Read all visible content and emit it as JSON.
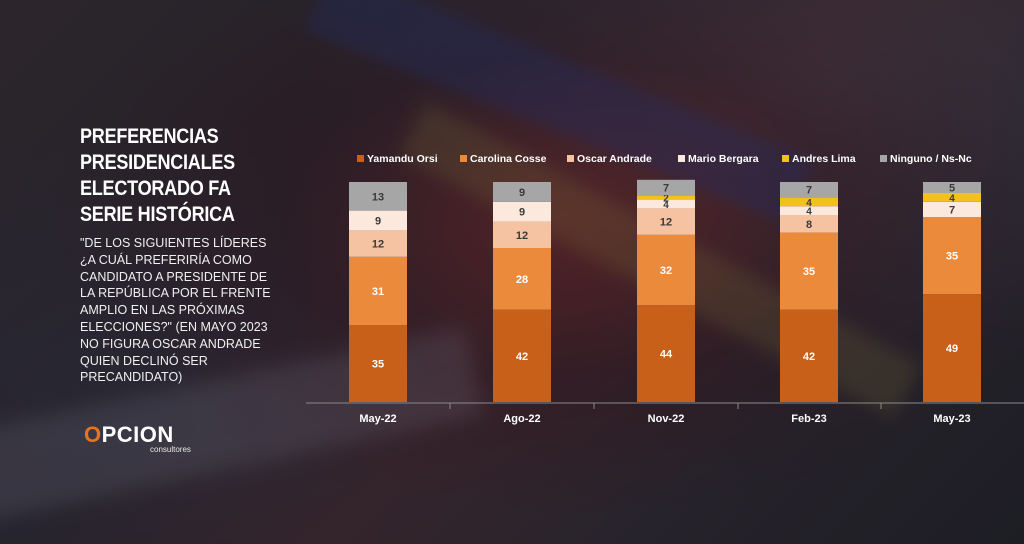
{
  "header": {
    "title_lines": [
      "PREFERENCIAS",
      "PRESIDENCIALES",
      "ELECTORADO FA",
      "SERIE HISTÓRICA"
    ],
    "question": "\"DE LOS SIGUIENTES LÍDERES ¿A CUÁL PREFERIRÍA COMO CANDIDATO A PRESIDENTE DE LA REPÚBLICA POR EL FRENTE AMPLIO EN LAS PRÓXIMAS ELECCIONES?\" (EN MAYO 2023 NO FIGURA OSCAR ANDRADE QUIEN DECLINÓ SER PRECANDIDATO)"
  },
  "logo": {
    "word_first": "O",
    "word_rest": "PCION",
    "sub": "consultores"
  },
  "chart_data": {
    "type": "bar",
    "stacked": true,
    "categories": [
      "May-22",
      "Ago-22",
      "Nov-22",
      "Feb-23",
      "May-23"
    ],
    "legend_position": "top",
    "grid": false,
    "ylim": [
      0,
      100
    ],
    "series": [
      {
        "name": "Yamandu Orsi",
        "color": "#c8601a",
        "values": [
          35,
          42,
          44,
          42,
          49
        ]
      },
      {
        "name": "Carolina Cosse",
        "color": "#ec8a3c",
        "values": [
          31,
          28,
          32,
          35,
          35
        ]
      },
      {
        "name": "Oscar Andrade",
        "color": "#f5c3a2",
        "values": [
          12,
          12,
          12,
          8,
          null
        ]
      },
      {
        "name": "Mario Bergara",
        "color": "#fce9dd",
        "values": [
          9,
          9,
          4,
          4,
          7
        ]
      },
      {
        "name": "Andres Lima",
        "color": "#f2c21b",
        "values": [
          null,
          null,
          2,
          4,
          4
        ]
      },
      {
        "name": "Ninguno / Ns-Nc",
        "color": "#a6a6a6",
        "values": [
          13,
          9,
          7,
          7,
          5
        ]
      }
    ]
  }
}
